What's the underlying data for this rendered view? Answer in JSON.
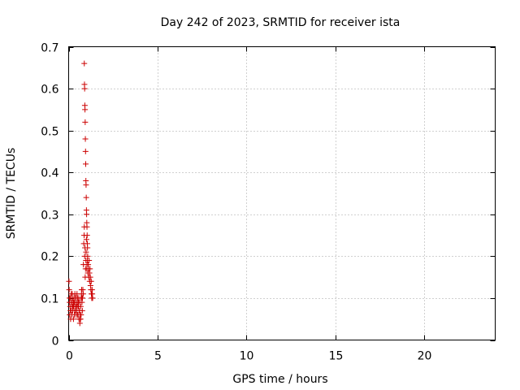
{
  "chart_data": {
    "type": "scatter",
    "title": "Day 242 of 2023, SRMTID for receiver ista",
    "xlabel": "GPS time / hours",
    "ylabel": "SRMTID / TECUs",
    "xlim": [
      0,
      24
    ],
    "ylim": [
      0,
      0.7
    ],
    "grid": true,
    "marker": "+",
    "color": "#cc0000",
    "x_ticks": [
      0,
      5,
      10,
      15,
      20
    ],
    "x_tick_labels": [
      "0",
      "5",
      "10",
      "15",
      "20"
    ],
    "y_ticks": [
      0,
      0.1,
      0.2,
      0.3,
      0.4,
      0.5,
      0.6,
      0.7
    ],
    "y_tick_labels": [
      "0",
      "0.1",
      "0.2",
      "0.3",
      "0.4",
      "0.5",
      "0.6",
      "0.7"
    ],
    "series": [
      {
        "name": "SRMTID",
        "x": [
          0.02,
          0.03,
          0.05,
          0.06,
          0.08,
          0.1,
          0.11,
          0.13,
          0.15,
          0.16,
          0.18,
          0.2,
          0.21,
          0.23,
          0.25,
          0.27,
          0.28,
          0.3,
          0.32,
          0.33,
          0.35,
          0.37,
          0.38,
          0.4,
          0.42,
          0.43,
          0.45,
          0.47,
          0.48,
          0.5,
          0.52,
          0.53,
          0.55,
          0.57,
          0.58,
          0.6,
          0.62,
          0.63,
          0.65,
          0.67,
          0.68,
          0.7,
          0.72,
          0.73,
          0.75,
          0.77,
          0.78,
          0.8,
          0.82,
          0.83,
          0.85,
          0.87,
          0.88,
          0.9,
          0.92,
          0.93,
          0.95,
          0.97,
          0.98,
          1.0,
          1.02,
          1.03,
          1.05,
          1.07,
          1.08,
          1.1,
          1.12,
          1.13,
          1.15,
          1.17,
          1.18,
          1.2,
          1.22,
          1.23,
          1.25,
          1.27,
          1.28,
          1.3,
          1.32,
          1.33,
          1.35,
          0.05,
          0.1,
          0.15,
          0.2,
          0.25,
          0.3,
          0.35,
          0.4,
          0.45,
          0.5,
          0.55,
          0.6,
          0.65,
          0.7,
          0.75,
          0.88,
          0.89,
          0.9,
          0.91,
          0.92,
          0.93,
          0.94,
          0.95,
          0.96,
          0.97,
          0.98,
          0.99,
          1.0,
          1.01,
          1.02,
          1.03,
          1.04,
          1.05,
          1.06
        ],
        "values": [
          0.14,
          0.12,
          0.09,
          0.06,
          0.08,
          0.1,
          0.05,
          0.07,
          0.11,
          0.09,
          0.06,
          0.08,
          0.1,
          0.07,
          0.09,
          0.05,
          0.08,
          0.1,
          0.06,
          0.09,
          0.11,
          0.07,
          0.08,
          0.1,
          0.06,
          0.09,
          0.07,
          0.11,
          0.08,
          0.1,
          0.09,
          0.06,
          0.08,
          0.1,
          0.05,
          0.07,
          0.09,
          0.04,
          0.06,
          0.05,
          0.08,
          0.1,
          0.11,
          0.12,
          0.09,
          0.07,
          0.1,
          0.12,
          0.11,
          0.18,
          0.23,
          0.25,
          0.27,
          0.2,
          0.22,
          0.15,
          0.17,
          0.19,
          0.21,
          0.24,
          0.17,
          0.18,
          0.19,
          0.2,
          0.16,
          0.18,
          0.17,
          0.15,
          0.19,
          0.16,
          0.14,
          0.17,
          0.15,
          0.13,
          0.12,
          0.14,
          0.11,
          0.1,
          0.12,
          0.11,
          0.1,
          0.1,
          0.07,
          0.09,
          0.11,
          0.08,
          0.09,
          0.07,
          0.1,
          0.08,
          0.06,
          0.09,
          0.07,
          0.05,
          0.06,
          0.1,
          0.66,
          0.61,
          0.6,
          0.56,
          0.55,
          0.52,
          0.48,
          0.45,
          0.42,
          0.38,
          0.37,
          0.34,
          0.31,
          0.3,
          0.28,
          0.27,
          0.25,
          0.23,
          0.22
        ]
      }
    ]
  }
}
